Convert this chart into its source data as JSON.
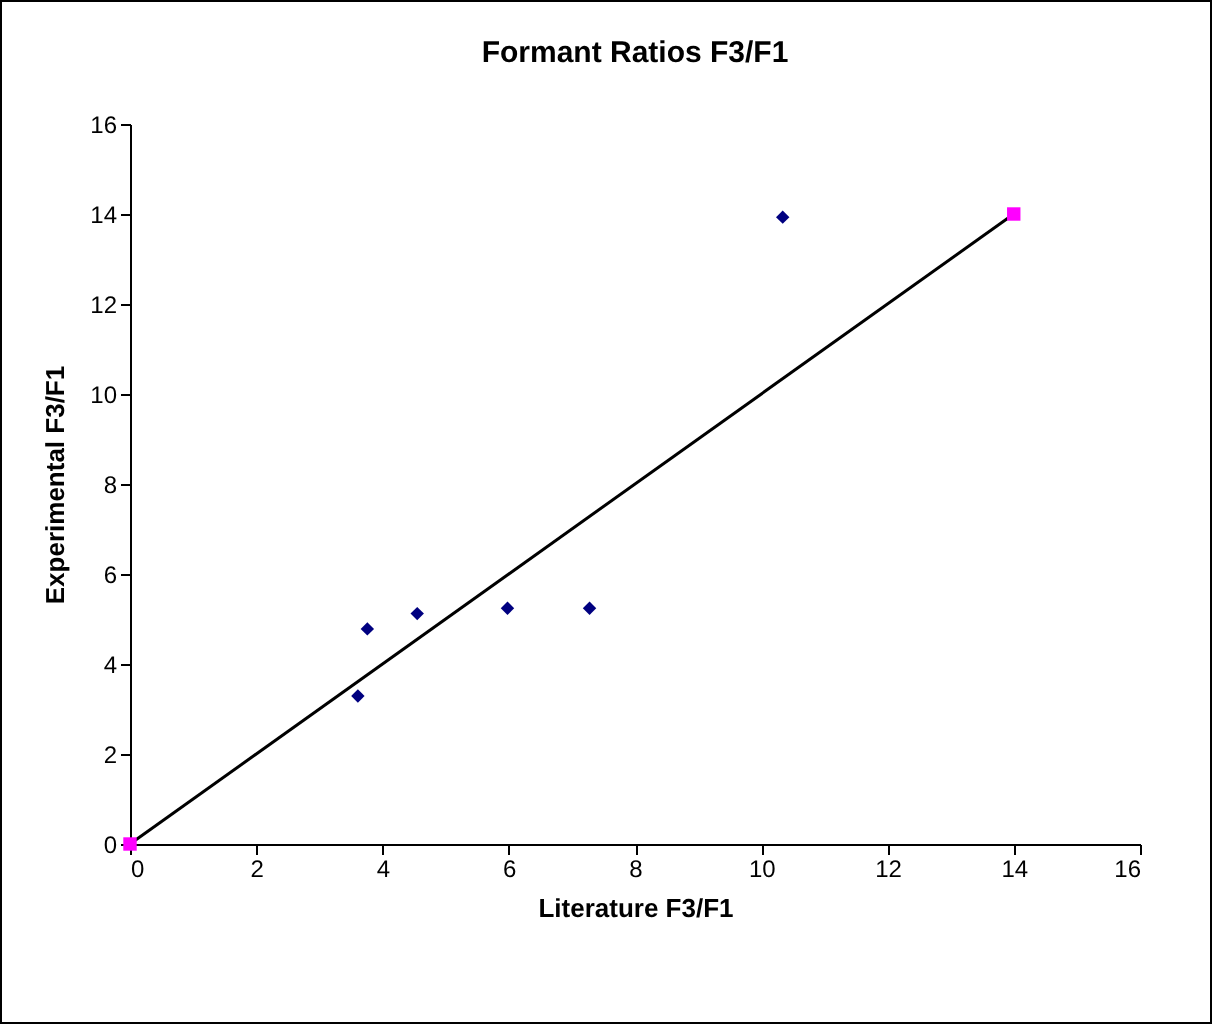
{
  "chart_data": {
    "type": "scatter",
    "title": "Formant Ratios F3/F1",
    "xlabel": "Literature F3/F1",
    "ylabel": "Experimental  F3/F1",
    "xlim": [
      0,
      16
    ],
    "xticks": [
      0,
      2,
      4,
      6,
      8,
      10,
      12,
      14,
      16
    ],
    "ylim": [
      0,
      16
    ],
    "yticks": [
      0,
      2,
      4,
      6,
      8,
      10,
      12,
      14,
      16
    ],
    "grid": false,
    "series": [
      {
        "marker": "diamond",
        "color": "#000080",
        "x": [
          3.61,
          3.76,
          4.55,
          5.98,
          7.28,
          10.34
        ],
        "values": [
          3.29,
          4.78,
          5.12,
          5.24,
          5.24,
          13.93
        ]
      },
      {
        "type": "line",
        "marker": "none",
        "color": "#000000",
        "x": [
          0,
          14
        ],
        "values": [
          0,
          14
        ]
      },
      {
        "marker": "square",
        "color": "#ff00ff",
        "x": [
          0,
          14
        ],
        "values": [
          0,
          14
        ]
      }
    ]
  }
}
